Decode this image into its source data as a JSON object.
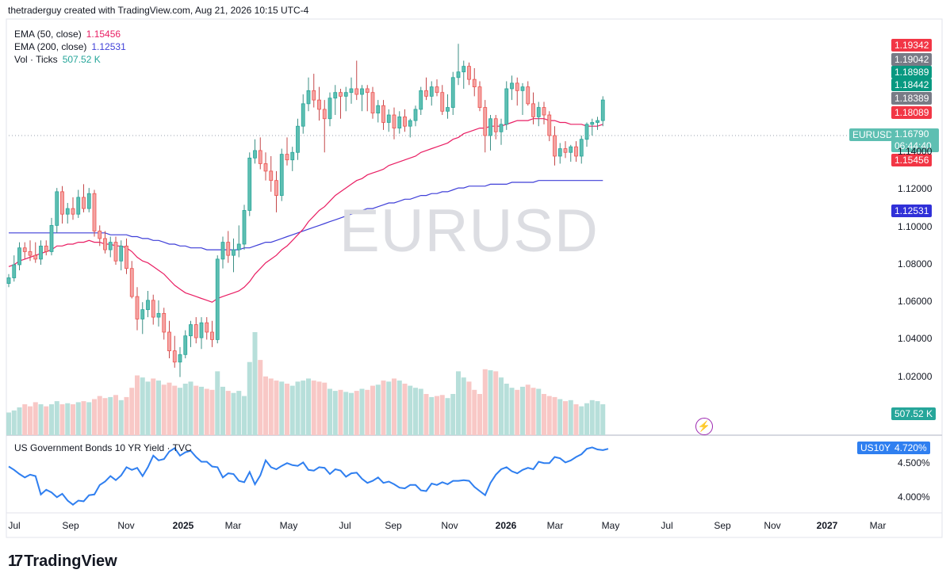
{
  "header": {
    "text": "thetraderguy created with TradingView.com, Aug 21, 2026 10:15 UTC-4"
  },
  "watermark": "EURUSD",
  "logo": {
    "mark": "17",
    "text": "TradingView"
  },
  "colors": {
    "up": "#26a69a",
    "down": "#ef5350",
    "up_fill": "#5ebfb2",
    "down_fill": "#f3a5a4",
    "vol_up": "#b7dfda",
    "vol_down": "#f8c8c6",
    "ema50": "#e91e63",
    "ema200": "#3f3fd8",
    "yield": "#2f7ff0"
  },
  "legend": {
    "ema50": {
      "label": "EMA (50, close)",
      "value": "1.15456"
    },
    "ema200": {
      "label": "EMA (200, close)",
      "value": "1.12531"
    },
    "vol": {
      "label": "Vol · Ticks",
      "value": "507.52 K"
    }
  },
  "lower_pane": {
    "label": "US Government Bonds 10 YR Yield · TVC"
  },
  "tags": {
    "t1": "1.19342",
    "t2": "1.19042",
    "t3": "1.18989",
    "t4": "1.18442",
    "t5": "1.18389",
    "t6": "1.18089",
    "symbol": "EURUSD",
    "last": "1.16790",
    "countdown": "06:44:40",
    "ema50": "1.15456",
    "ema200": "1.12531",
    "vol": "507.52 K",
    "us10y_name": "US10Y",
    "us10y_value": "4.720%"
  },
  "price_ticks": [
    "1.14000",
    "1.12000",
    "1.10000",
    "1.08000",
    "1.06000",
    "1.04000",
    "1.02000"
  ],
  "yield_ticks": [
    "4.500%",
    "4.000%"
  ],
  "time_ticks": [
    {
      "label": "Jul",
      "bold": false
    },
    {
      "label": "Sep",
      "bold": false
    },
    {
      "label": "Nov",
      "bold": false
    },
    {
      "label": "2025",
      "bold": true
    },
    {
      "label": "Mar",
      "bold": false
    },
    {
      "label": "May",
      "bold": false
    },
    {
      "label": "Jul",
      "bold": false
    },
    {
      "label": "Sep",
      "bold": false
    },
    {
      "label": "Nov",
      "bold": false
    },
    {
      "label": "2026",
      "bold": true
    },
    {
      "label": "Mar",
      "bold": false
    },
    {
      "label": "May",
      "bold": false
    },
    {
      "label": "Jul",
      "bold": false
    },
    {
      "label": "Sep",
      "bold": false
    },
    {
      "label": "Nov",
      "bold": false
    },
    {
      "label": "2027",
      "bold": true
    },
    {
      "label": "Mar",
      "bold": false
    }
  ],
  "chart_data": {
    "type": "candlestick",
    "symbol": "EURUSD",
    "timeframe": "weekly",
    "ylim": [
      1.008,
      1.196
    ],
    "grid": false,
    "ohlc": [
      [
        1.07,
        1.075,
        1.068,
        1.073
      ],
      [
        1.073,
        1.085,
        1.071,
        1.08
      ],
      [
        1.08,
        1.092,
        1.077,
        1.089
      ],
      [
        1.089,
        1.092,
        1.083,
        1.087
      ],
      [
        1.087,
        1.093,
        1.082,
        1.085
      ],
      [
        1.085,
        1.092,
        1.081,
        1.083
      ],
      [
        1.083,
        1.093,
        1.08,
        1.09
      ],
      [
        1.09,
        1.093,
        1.085,
        1.087
      ],
      [
        1.087,
        1.105,
        1.085,
        1.101
      ],
      [
        1.101,
        1.121,
        1.097,
        1.119
      ],
      [
        1.119,
        1.122,
        1.102,
        1.107
      ],
      [
        1.107,
        1.113,
        1.102,
        1.11
      ],
      [
        1.11,
        1.116,
        1.104,
        1.107
      ],
      [
        1.107,
        1.12,
        1.105,
        1.116
      ],
      [
        1.116,
        1.123,
        1.108,
        1.11
      ],
      [
        1.11,
        1.121,
        1.108,
        1.118
      ],
      [
        1.118,
        1.12,
        1.095,
        1.098
      ],
      [
        1.098,
        1.101,
        1.09,
        1.094
      ],
      [
        1.094,
        1.098,
        1.086,
        1.088
      ],
      [
        1.088,
        1.095,
        1.084,
        1.092
      ],
      [
        1.092,
        1.095,
        1.08,
        1.082
      ],
      [
        1.082,
        1.093,
        1.077,
        1.09
      ],
      [
        1.09,
        1.094,
        1.075,
        1.078
      ],
      [
        1.078,
        1.082,
        1.062,
        1.063
      ],
      [
        1.063,
        1.068,
        1.045,
        1.051
      ],
      [
        1.051,
        1.06,
        1.043,
        1.056
      ],
      [
        1.056,
        1.066,
        1.052,
        1.061
      ],
      [
        1.061,
        1.064,
        1.048,
        1.052
      ],
      [
        1.052,
        1.061,
        1.047,
        1.054
      ],
      [
        1.054,
        1.057,
        1.04,
        1.044
      ],
      [
        1.044,
        1.05,
        1.03,
        1.034
      ],
      [
        1.034,
        1.042,
        1.025,
        1.028
      ],
      [
        1.028,
        1.036,
        1.02,
        1.032
      ],
      [
        1.032,
        1.045,
        1.03,
        1.042
      ],
      [
        1.042,
        1.05,
        1.036,
        1.048
      ],
      [
        1.048,
        1.052,
        1.038,
        1.041
      ],
      [
        1.041,
        1.052,
        1.035,
        1.049
      ],
      [
        1.049,
        1.052,
        1.04,
        1.044
      ],
      [
        1.044,
        1.05,
        1.036,
        1.04
      ],
      [
        1.04,
        1.085,
        1.038,
        1.083
      ],
      [
        1.083,
        1.095,
        1.078,
        1.092
      ],
      [
        1.092,
        1.098,
        1.081,
        1.085
      ],
      [
        1.085,
        1.094,
        1.076,
        1.088
      ],
      [
        1.088,
        1.101,
        1.084,
        1.091
      ],
      [
        1.091,
        1.112,
        1.088,
        1.109
      ],
      [
        1.109,
        1.14,
        1.106,
        1.137
      ],
      [
        1.137,
        1.147,
        1.134,
        1.141
      ],
      [
        1.141,
        1.148,
        1.131,
        1.134
      ],
      [
        1.134,
        1.14,
        1.125,
        1.13
      ],
      [
        1.13,
        1.138,
        1.119,
        1.125
      ],
      [
        1.125,
        1.13,
        1.108,
        1.117
      ],
      [
        1.117,
        1.142,
        1.114,
        1.139
      ],
      [
        1.139,
        1.148,
        1.133,
        1.136
      ],
      [
        1.136,
        1.143,
        1.13,
        1.14
      ],
      [
        1.14,
        1.158,
        1.136,
        1.154
      ],
      [
        1.154,
        1.171,
        1.15,
        1.166
      ],
      [
        1.166,
        1.18,
        1.162,
        1.173
      ],
      [
        1.173,
        1.182,
        1.164,
        1.168
      ],
      [
        1.168,
        1.175,
        1.157,
        1.163
      ],
      [
        1.163,
        1.168,
        1.14,
        1.158
      ],
      [
        1.158,
        1.172,
        1.154,
        1.169
      ],
      [
        1.169,
        1.176,
        1.16,
        1.172
      ],
      [
        1.172,
        1.174,
        1.158,
        1.17
      ],
      [
        1.17,
        1.175,
        1.162,
        1.172
      ],
      [
        1.172,
        1.18,
        1.166,
        1.174
      ],
      [
        1.174,
        1.189,
        1.168,
        1.171
      ],
      [
        1.171,
        1.176,
        1.162,
        1.174
      ],
      [
        1.174,
        1.176,
        1.162,
        1.172
      ],
      [
        1.172,
        1.175,
        1.158,
        1.161
      ],
      [
        1.161,
        1.168,
        1.156,
        1.165
      ],
      [
        1.165,
        1.168,
        1.152,
        1.156
      ],
      [
        1.156,
        1.163,
        1.151,
        1.16
      ],
      [
        1.16,
        1.164,
        1.147,
        1.153
      ],
      [
        1.153,
        1.162,
        1.15,
        1.159
      ],
      [
        1.159,
        1.163,
        1.151,
        1.154
      ],
      [
        1.154,
        1.158,
        1.148,
        1.157
      ],
      [
        1.157,
        1.165,
        1.154,
        1.163
      ],
      [
        1.163,
        1.175,
        1.16,
        1.173
      ],
      [
        1.173,
        1.18,
        1.168,
        1.17
      ],
      [
        1.17,
        1.178,
        1.165,
        1.175
      ],
      [
        1.175,
        1.179,
        1.17,
        1.172
      ],
      [
        1.172,
        1.176,
        1.16,
        1.162
      ],
      [
        1.162,
        1.171,
        1.158,
        1.164
      ],
      [
        1.164,
        1.183,
        1.16,
        1.18
      ],
      [
        1.18,
        1.198,
        1.176,
        1.183
      ],
      [
        1.183,
        1.189,
        1.174,
        1.186
      ],
      [
        1.186,
        1.188,
        1.176,
        1.179
      ],
      [
        1.179,
        1.185,
        1.17,
        1.175
      ],
      [
        1.175,
        1.178,
        1.162,
        1.164
      ],
      [
        1.164,
        1.168,
        1.14,
        1.149
      ],
      [
        1.149,
        1.16,
        1.141,
        1.158
      ],
      [
        1.158,
        1.16,
        1.147,
        1.151
      ],
      [
        1.151,
        1.158,
        1.144,
        1.155
      ],
      [
        1.155,
        1.178,
        1.152,
        1.174
      ],
      [
        1.174,
        1.181,
        1.168,
        1.177
      ],
      [
        1.177,
        1.18,
        1.165,
        1.173
      ],
      [
        1.173,
        1.177,
        1.16,
        1.175
      ],
      [
        1.175,
        1.178,
        1.165,
        1.166
      ],
      [
        1.166,
        1.172,
        1.155,
        1.159
      ],
      [
        1.159,
        1.167,
        1.154,
        1.164
      ],
      [
        1.164,
        1.167,
        1.155,
        1.16
      ],
      [
        1.16,
        1.162,
        1.146,
        1.149
      ],
      [
        1.149,
        1.154,
        1.133,
        1.138
      ],
      [
        1.138,
        1.145,
        1.134,
        1.142
      ],
      [
        1.142,
        1.146,
        1.137,
        1.14
      ],
      [
        1.14,
        1.144,
        1.135,
        1.143
      ],
      [
        1.143,
        1.146,
        1.135,
        1.138
      ],
      [
        1.138,
        1.149,
        1.134,
        1.147
      ],
      [
        1.147,
        1.156,
        1.143,
        1.155
      ],
      [
        1.155,
        1.158,
        1.149,
        1.156
      ],
      [
        1.156,
        1.159,
        1.152,
        1.157
      ],
      [
        1.157,
        1.17,
        1.154,
        1.168
      ]
    ],
    "volume": [
      0.22,
      0.24,
      0.27,
      0.3,
      0.28,
      0.32,
      0.3,
      0.28,
      0.3,
      0.33,
      0.3,
      0.31,
      0.3,
      0.32,
      0.33,
      0.32,
      0.35,
      0.38,
      0.36,
      0.37,
      0.39,
      0.34,
      0.37,
      0.46,
      0.58,
      0.56,
      0.52,
      0.55,
      0.53,
      0.49,
      0.51,
      0.48,
      0.46,
      0.5,
      0.52,
      0.48,
      0.47,
      0.45,
      0.44,
      0.62,
      0.47,
      0.43,
      0.41,
      0.43,
      0.38,
      0.71,
      1.0,
      0.73,
      0.57,
      0.55,
      0.53,
      0.52,
      0.5,
      0.48,
      0.52,
      0.53,
      0.55,
      0.53,
      0.52,
      0.51,
      0.45,
      0.43,
      0.44,
      0.42,
      0.41,
      0.43,
      0.45,
      0.44,
      0.48,
      0.49,
      0.53,
      0.52,
      0.55,
      0.53,
      0.5,
      0.48,
      0.46,
      0.45,
      0.4,
      0.37,
      0.38,
      0.39,
      0.36,
      0.4,
      0.62,
      0.56,
      0.52,
      0.44,
      0.4,
      0.64,
      0.63,
      0.62,
      0.56,
      0.5,
      0.46,
      0.44,
      0.47,
      0.49,
      0.46,
      0.45,
      0.4,
      0.38,
      0.37,
      0.35,
      0.33,
      0.34,
      0.3,
      0.28,
      0.31,
      0.34,
      0.33,
      0.3
    ],
    "ema50": [
      1.079,
      1.08,
      1.082,
      1.083,
      1.084,
      1.085,
      1.086,
      1.087,
      1.088,
      1.09,
      1.09,
      1.091,
      1.091,
      1.092,
      1.092,
      1.093,
      1.092,
      1.092,
      1.091,
      1.091,
      1.09,
      1.09,
      1.089,
      1.087,
      1.084,
      1.082,
      1.081,
      1.079,
      1.077,
      1.075,
      1.072,
      1.069,
      1.067,
      1.065,
      1.064,
      1.063,
      1.062,
      1.061,
      1.06,
      1.062,
      1.063,
      1.064,
      1.065,
      1.066,
      1.068,
      1.071,
      1.075,
      1.078,
      1.081,
      1.083,
      1.085,
      1.088,
      1.09,
      1.093,
      1.096,
      1.099,
      1.103,
      1.106,
      1.109,
      1.111,
      1.114,
      1.117,
      1.119,
      1.121,
      1.123,
      1.125,
      1.126,
      1.128,
      1.129,
      1.13,
      1.131,
      1.133,
      1.134,
      1.135,
      1.136,
      1.137,
      1.138,
      1.14,
      1.141,
      1.142,
      1.143,
      1.144,
      1.145,
      1.147,
      1.148,
      1.15,
      1.151,
      1.152,
      1.153,
      1.153,
      1.154,
      1.154,
      1.154,
      1.155,
      1.156,
      1.157,
      1.157,
      1.157,
      1.158,
      1.158,
      1.158,
      1.157,
      1.157,
      1.156,
      1.156,
      1.155,
      1.155,
      1.155,
      1.154,
      1.154,
      1.154,
      1.155
    ],
    "ema200": [
      1.097,
      1.097,
      1.097,
      1.097,
      1.097,
      1.097,
      1.097,
      1.097,
      1.097,
      1.097,
      1.097,
      1.097,
      1.097,
      1.097,
      1.097,
      1.097,
      1.097,
      1.097,
      1.097,
      1.096,
      1.096,
      1.096,
      1.096,
      1.095,
      1.095,
      1.094,
      1.094,
      1.093,
      1.093,
      1.092,
      1.091,
      1.091,
      1.09,
      1.09,
      1.089,
      1.089,
      1.089,
      1.088,
      1.088,
      1.088,
      1.088,
      1.088,
      1.088,
      1.088,
      1.089,
      1.089,
      1.09,
      1.091,
      1.092,
      1.092,
      1.093,
      1.094,
      1.095,
      1.096,
      1.097,
      1.098,
      1.099,
      1.1,
      1.101,
      1.102,
      1.103,
      1.104,
      1.105,
      1.106,
      1.107,
      1.108,
      1.109,
      1.11,
      1.11,
      1.111,
      1.112,
      1.113,
      1.113,
      1.114,
      1.115,
      1.115,
      1.116,
      1.117,
      1.117,
      1.118,
      1.118,
      1.119,
      1.119,
      1.12,
      1.121,
      1.121,
      1.122,
      1.122,
      1.122,
      1.122,
      1.123,
      1.123,
      1.123,
      1.123,
      1.124,
      1.124,
      1.124,
      1.124,
      1.124,
      1.125,
      1.125,
      1.125,
      1.125,
      1.125,
      1.125,
      1.125,
      1.125,
      1.125,
      1.125,
      1.125,
      1.125,
      1.125
    ],
    "us10y": [
      4.46,
      4.41,
      4.35,
      4.3,
      4.34,
      4.32,
      4.05,
      4.12,
      4.08,
      4.01,
      4.06,
      3.96,
      3.9,
      3.96,
      3.95,
      4.04,
      4.05,
      4.19,
      4.24,
      4.32,
      4.26,
      4.33,
      4.45,
      4.41,
      4.44,
      4.32,
      4.45,
      4.62,
      4.55,
      4.57,
      4.68,
      4.73,
      4.62,
      4.67,
      4.69,
      4.6,
      4.53,
      4.53,
      4.46,
      4.45,
      4.3,
      4.36,
      4.35,
      4.25,
      4.23,
      4.38,
      4.2,
      4.33,
      4.55,
      4.45,
      4.42,
      4.47,
      4.51,
      4.48,
      4.47,
      4.52,
      4.41,
      4.4,
      4.45,
      4.44,
      4.35,
      4.42,
      4.4,
      4.31,
      4.36,
      4.37,
      4.28,
      4.22,
      4.25,
      4.3,
      4.22,
      4.24,
      4.2,
      4.15,
      4.14,
      4.19,
      4.19,
      4.11,
      4.1,
      4.21,
      4.19,
      4.23,
      4.2,
      4.25,
      4.25,
      4.26,
      4.25,
      4.16,
      4.1,
      4.04,
      4.22,
      4.34,
      4.42,
      4.45,
      4.39,
      4.36,
      4.41,
      4.44,
      4.42,
      4.53,
      4.51,
      4.51,
      4.6,
      4.58,
      4.52,
      4.55,
      4.6,
      4.64,
      4.72,
      4.74,
      4.71,
      4.7,
      4.72
    ],
    "us10y_ylim": [
      3.85,
      4.78
    ]
  }
}
